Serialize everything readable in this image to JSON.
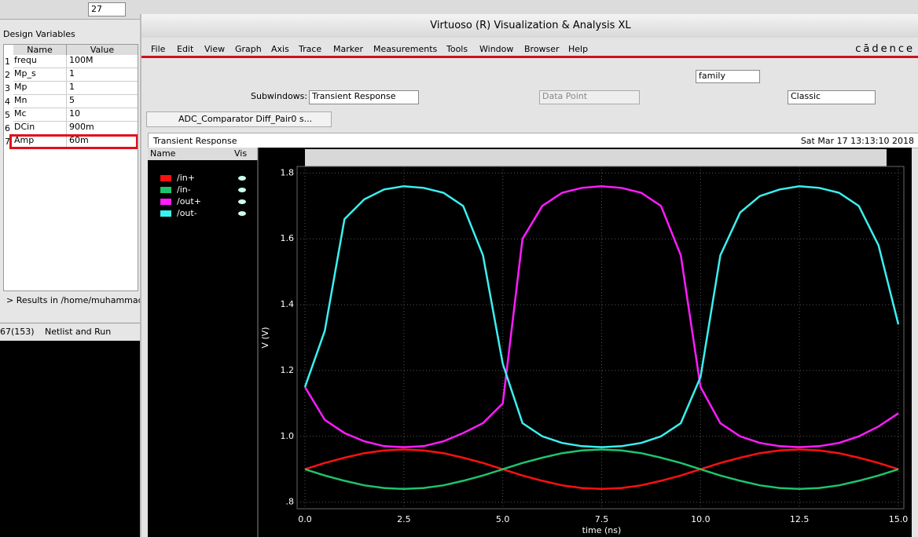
{
  "toolbar": {
    "temperature": "27"
  },
  "design_variables": {
    "title": "Design Variables",
    "columns": [
      "Name",
      "Value"
    ],
    "rows": [
      {
        "n": "1",
        "name": "frequ",
        "value": "100M"
      },
      {
        "n": "2",
        "name": "Mp_s",
        "value": "1"
      },
      {
        "n": "3",
        "name": "Mp",
        "value": "1"
      },
      {
        "n": "4",
        "name": "Mn",
        "value": "5"
      },
      {
        "n": "5",
        "name": "Mc",
        "value": "10"
      },
      {
        "n": "6",
        "name": "DCin",
        "value": "900m"
      },
      {
        "n": "7",
        "name": "Amp",
        "value": "60m"
      }
    ]
  },
  "results_path": "> Results in /home/muhammad",
  "status": {
    "count": "67(153)",
    "action": "Netlist and Run"
  },
  "window": {
    "title": "Virtuoso (R) Visualization & Analysis XL",
    "menu": [
      "File",
      "Edit",
      "View",
      "Graph",
      "Axis",
      "Trace",
      "Marker",
      "Measurements",
      "Tools",
      "Window",
      "Browser",
      "Help"
    ],
    "logo": "cādence",
    "toolbar": {
      "family": "family",
      "subwindows_label": "Subwindows:",
      "subwindow": "Transient Response",
      "data_point": "Data Point",
      "style": "Classic"
    },
    "tab": "ADC_Comparator Diff_Pair0 s..."
  },
  "chart_data": {
    "type": "line",
    "title": "Transient Response",
    "date": "Sat Mar 17 13:13:10 2018",
    "legend_header": [
      "Name",
      "Vis"
    ],
    "xlabel": "time (ns)",
    "ylabel": "V (V)",
    "x": [
      0,
      0.5,
      1,
      1.5,
      2,
      2.5,
      3,
      3.5,
      4,
      4.5,
      5,
      5.5,
      6,
      6.5,
      7,
      7.5,
      8,
      8.5,
      9,
      9.5,
      10,
      10.5,
      11,
      11.5,
      12,
      12.5,
      13,
      13.5,
      14,
      14.5,
      15
    ],
    "series": [
      {
        "name": "/in+",
        "color": "#ff1010",
        "values": [
          0.9,
          0.919,
          0.935,
          0.949,
          0.957,
          0.96,
          0.957,
          0.949,
          0.935,
          0.919,
          0.9,
          0.881,
          0.865,
          0.851,
          0.843,
          0.84,
          0.843,
          0.851,
          0.865,
          0.881,
          0.9,
          0.919,
          0.935,
          0.949,
          0.957,
          0.96,
          0.957,
          0.949,
          0.935,
          0.919,
          0.9
        ]
      },
      {
        "name": "/in-",
        "color": "#1ec46c",
        "values": [
          0.9,
          0.881,
          0.865,
          0.851,
          0.843,
          0.84,
          0.843,
          0.851,
          0.865,
          0.881,
          0.9,
          0.919,
          0.935,
          0.949,
          0.957,
          0.96,
          0.957,
          0.949,
          0.935,
          0.919,
          0.9,
          0.881,
          0.865,
          0.851,
          0.843,
          0.84,
          0.843,
          0.851,
          0.865,
          0.881,
          0.9
        ]
      },
      {
        "name": "/out+",
        "color": "#ff1cff",
        "values": [
          1.15,
          1.05,
          1.01,
          0.985,
          0.97,
          0.967,
          0.97,
          0.985,
          1.01,
          1.04,
          1.1,
          1.6,
          1.7,
          1.74,
          1.755,
          1.76,
          1.755,
          1.74,
          1.7,
          1.55,
          1.15,
          1.04,
          1.0,
          0.98,
          0.97,
          0.967,
          0.97,
          0.98,
          1.0,
          1.03,
          1.07
        ]
      },
      {
        "name": "/out-",
        "color": "#3cf0f0",
        "values": [
          1.15,
          1.32,
          1.66,
          1.72,
          1.75,
          1.76,
          1.755,
          1.74,
          1.7,
          1.55,
          1.22,
          1.04,
          1.0,
          0.98,
          0.97,
          0.967,
          0.97,
          0.98,
          1.0,
          1.04,
          1.18,
          1.55,
          1.68,
          1.73,
          1.75,
          1.76,
          1.755,
          1.74,
          1.7,
          1.58,
          1.34
        ]
      }
    ],
    "xlim": [
      0,
      15
    ],
    "ylim": [
      0.78,
      1.82
    ],
    "xticks": [
      {
        "value": 0,
        "label": "0.0"
      },
      2.5,
      {
        "value": 5,
        "label": "5.0"
      },
      7.5,
      {
        "value": 10,
        "label": "10.0"
      },
      12.5,
      {
        "value": 15,
        "label": "15.0"
      }
    ],
    "yticks": [
      {
        "value": 0.8,
        "label": ".8"
      },
      {
        "value": 1,
        "label": "1.0"
      },
      1.2,
      1.4,
      1.6,
      1.8
    ],
    "grid": true
  }
}
